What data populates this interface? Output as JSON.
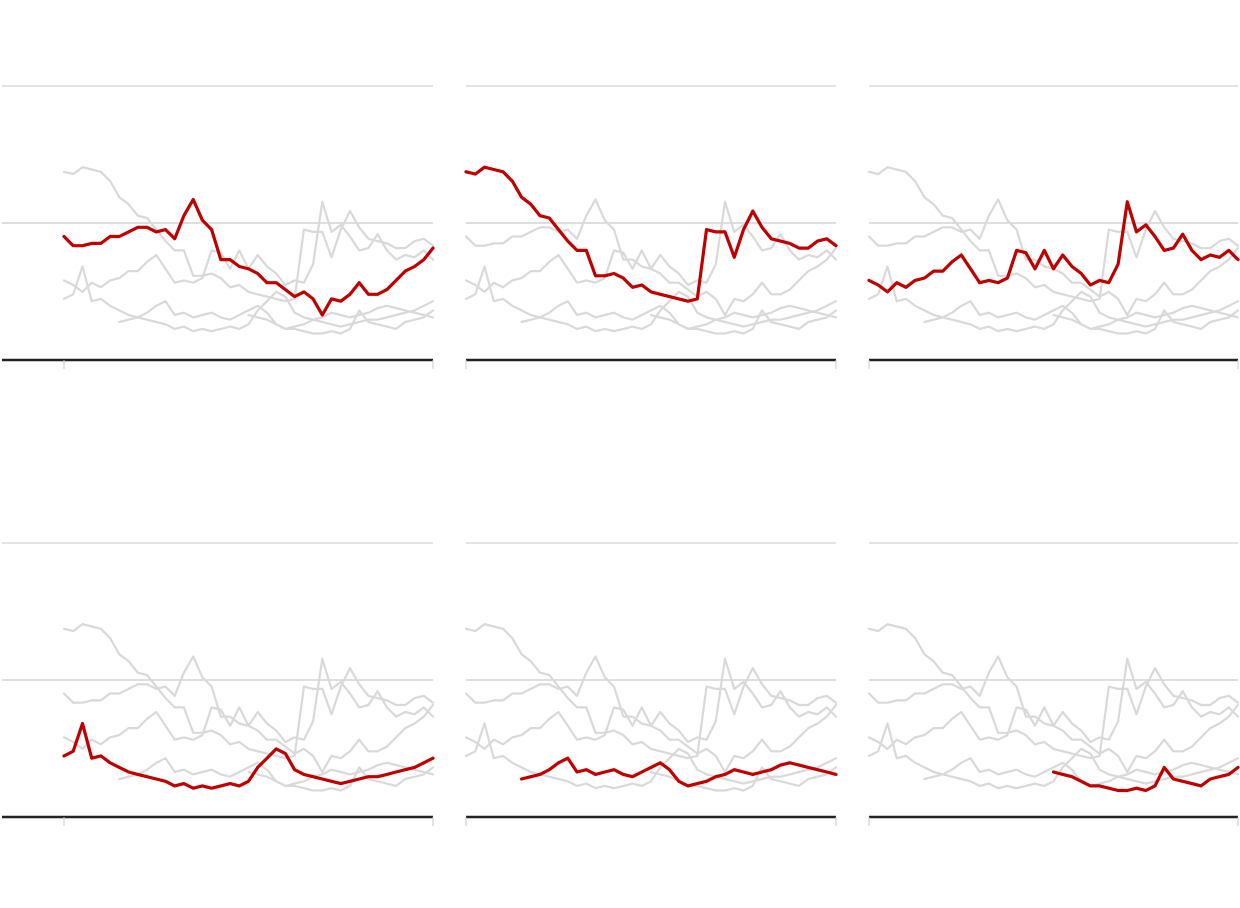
{
  "colors": {
    "highlight": "#c00000",
    "context": "#d9d9d9",
    "gridline": "#c8c8c8",
    "midline": "#bdbdbd",
    "axis": "#222222"
  },
  "chart_data": [
    {
      "type": "line",
      "title": "",
      "xlabel": "",
      "ylabel": "",
      "x": [
        0,
        1,
        2,
        3,
        4,
        5,
        6,
        7,
        8,
        9,
        10,
        11,
        12,
        13,
        14,
        15,
        16,
        17,
        18,
        19,
        20,
        21,
        22,
        23,
        24,
        25,
        26,
        27,
        28,
        29,
        30,
        31,
        32,
        33,
        34,
        35,
        36,
        37,
        38,
        39,
        40
      ],
      "ylim": [
        0,
        100
      ],
      "grid": true,
      "highlight_series": "1",
      "series": [
        {
          "values": [
            50,
            46,
            46,
            47,
            47,
            50,
            50,
            52,
            54,
            54,
            52,
            53,
            49,
            59,
            66,
            57,
            53,
            40,
            40,
            37,
            36,
            34,
            30,
            30,
            27,
            24,
            26,
            23,
            16,
            23,
            22,
            25,
            30,
            25,
            25,
            27,
            31,
            35,
            37,
            40,
            45
          ]
        },
        {
          "values": [
            78,
            77,
            80,
            79,
            78,
            74,
            67,
            64,
            59,
            58,
            53,
            48,
            44,
            44,
            33,
            33,
            34,
            32,
            28,
            29,
            26,
            25,
            24,
            23,
            22,
            23,
            53,
            52,
            52,
            41,
            53,
            61,
            54,
            49,
            48,
            47,
            45,
            45,
            48,
            49,
            46
          ]
        },
        {
          "values": [
            31,
            29,
            26,
            30,
            28,
            31,
            32,
            35,
            35,
            39,
            42,
            36,
            30,
            31,
            30,
            32,
            44,
            43,
            36,
            44,
            36,
            42,
            37,
            34,
            29,
            31,
            30,
            38,
            65,
            52,
            55,
            50,
            44,
            45,
            51,
            44,
            40,
            42,
            41,
            44,
            40
          ]
        },
        {
          "values": [
            23,
            25,
            37,
            22,
            23,
            20,
            18,
            16,
            15,
            14,
            13,
            12,
            10,
            11,
            9,
            10,
            9,
            10,
            11,
            10,
            12,
            18,
            22,
            26,
            24,
            17,
            15,
            14,
            13,
            12,
            11,
            12,
            13,
            14,
            14,
            15,
            16,
            17,
            18,
            20,
            22
          ]
        },
        {
          "values": [
            null,
            null,
            null,
            null,
            null,
            null,
            13,
            14,
            15,
            17,
            20,
            22,
            16,
            17,
            15,
            16,
            17,
            15,
            14,
            16,
            18,
            20,
            17,
            12,
            10,
            11,
            12,
            14,
            15,
            17,
            16,
            15,
            16,
            17,
            19,
            20,
            19,
            18,
            17,
            16,
            15
          ]
        },
        {
          "values": [
            null,
            null,
            null,
            null,
            null,
            null,
            null,
            null,
            null,
            null,
            null,
            null,
            null,
            null,
            null,
            null,
            null,
            null,
            null,
            null,
            16,
            15,
            14,
            12,
            10,
            10,
            9,
            8,
            8,
            9,
            8,
            10,
            18,
            13,
            12,
            11,
            10,
            13,
            14,
            15,
            18
          ]
        }
      ]
    },
    {
      "type": "line",
      "title": "",
      "xlabel": "",
      "ylabel": "",
      "x": [
        0,
        1,
        2,
        3,
        4,
        5,
        6,
        7,
        8,
        9,
        10,
        11,
        12,
        13,
        14,
        15,
        16,
        17,
        18,
        19,
        20,
        21,
        22,
        23,
        24,
        25,
        26,
        27,
        28,
        29,
        30,
        31,
        32,
        33,
        34,
        35,
        36,
        37,
        38,
        39,
        40
      ],
      "ylim": [
        0,
        100
      ],
      "grid": true,
      "highlight_series": "2"
    },
    {
      "type": "line",
      "title": "",
      "xlabel": "",
      "ylabel": "",
      "x": [
        0,
        1,
        2,
        3,
        4,
        5,
        6,
        7,
        8,
        9,
        10,
        11,
        12,
        13,
        14,
        15,
        16,
        17,
        18,
        19,
        20,
        21,
        22,
        23,
        24,
        25,
        26,
        27,
        28,
        29,
        30,
        31,
        32,
        33,
        34,
        35,
        36,
        37,
        38,
        39,
        40
      ],
      "ylim": [
        0,
        100
      ],
      "grid": true,
      "highlight_series": "3"
    },
    {
      "type": "line",
      "title": "",
      "xlabel": "",
      "ylabel": "",
      "x": [
        0,
        1,
        2,
        3,
        4,
        5,
        6,
        7,
        8,
        9,
        10,
        11,
        12,
        13,
        14,
        15,
        16,
        17,
        18,
        19,
        20,
        21,
        22,
        23,
        24,
        25,
        26,
        27,
        28,
        29,
        30,
        31,
        32,
        33,
        34,
        35,
        36,
        37,
        38,
        39,
        40
      ],
      "ylim": [
        0,
        100
      ],
      "grid": true,
      "highlight_series": "4"
    },
    {
      "type": "line",
      "title": "",
      "xlabel": "",
      "ylabel": "",
      "x": [
        0,
        1,
        2,
        3,
        4,
        5,
        6,
        7,
        8,
        9,
        10,
        11,
        12,
        13,
        14,
        15,
        16,
        17,
        18,
        19,
        20,
        21,
        22,
        23,
        24,
        25,
        26,
        27,
        28,
        29,
        30,
        31,
        32,
        33,
        34,
        35,
        36,
        37,
        38,
        39,
        40
      ],
      "ylim": [
        0,
        100
      ],
      "grid": true,
      "highlight_series": "5"
    },
    {
      "type": "line",
      "title": "",
      "xlabel": "",
      "ylabel": "",
      "x": [
        0,
        1,
        2,
        3,
        4,
        5,
        6,
        7,
        8,
        9,
        10,
        11,
        12,
        13,
        14,
        15,
        16,
        17,
        18,
        19,
        20,
        21,
        22,
        23,
        24,
        25,
        26,
        27,
        28,
        29,
        30,
        31,
        32,
        33,
        34,
        35,
        36,
        37,
        38,
        39,
        40
      ],
      "ylim": [
        0,
        100
      ],
      "grid": true,
      "highlight_series": "6"
    }
  ]
}
